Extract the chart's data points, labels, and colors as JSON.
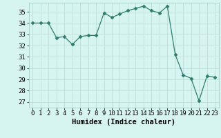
{
  "x": [
    0,
    1,
    2,
    3,
    4,
    5,
    6,
    7,
    8,
    9,
    10,
    11,
    12,
    13,
    14,
    15,
    16,
    17,
    18,
    19,
    20,
    21,
    22,
    23
  ],
  "y": [
    34,
    34,
    34,
    32.7,
    32.8,
    32.1,
    32.8,
    32.9,
    32.9,
    34.9,
    34.5,
    34.8,
    35.1,
    35.3,
    35.5,
    35.1,
    34.9,
    35.5,
    31.2,
    29.4,
    29.1,
    27.1,
    29.3,
    29.2
  ],
  "line_color": "#2e7d6e",
  "marker": "D",
  "marker_size": 2.5,
  "bg_color": "#d6f5f0",
  "grid_color": "#c0ddd8",
  "xlabel": "Humidex (Indice chaleur)",
  "xlabel_fontsize": 7.5,
  "tick_fontsize": 6.5,
  "ylim": [
    26.5,
    35.8
  ],
  "xlim": [
    -0.5,
    23.5
  ],
  "yticks": [
    27,
    28,
    29,
    30,
    31,
    32,
    33,
    34,
    35
  ],
  "xticks": [
    0,
    1,
    2,
    3,
    4,
    5,
    6,
    7,
    8,
    9,
    10,
    11,
    12,
    13,
    14,
    15,
    16,
    17,
    18,
    19,
    20,
    21,
    22,
    23
  ]
}
